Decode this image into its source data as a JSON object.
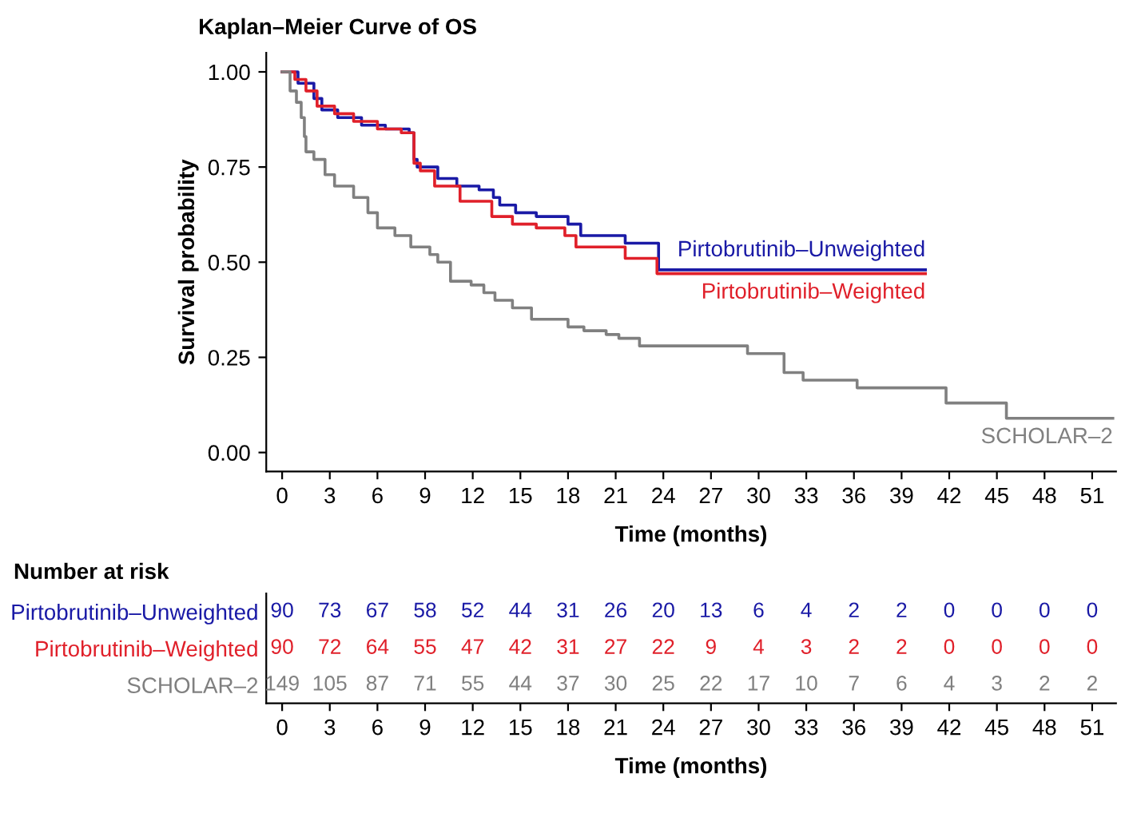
{
  "chart_data": [
    {
      "type": "step",
      "title": "Kaplan–Meier Curve of OS",
      "xlabel": "Time (months)",
      "ylabel": "Survival probability",
      "xlim": [
        -1,
        52.5
      ],
      "ylim": [
        -0.05,
        1.05
      ],
      "xticks": [
        0,
        3,
        6,
        9,
        12,
        15,
        18,
        21,
        24,
        27,
        30,
        33,
        36,
        39,
        42,
        45,
        48,
        51
      ],
      "yticks": [
        {
          "value": 0,
          "label": "0.00"
        },
        {
          "value": 0.25,
          "label": "0.25"
        },
        {
          "value": 0.5,
          "label": "0.50"
        },
        {
          "value": 0.75,
          "label": "0.75"
        },
        {
          "value": 1,
          "label": "1.00"
        }
      ],
      "grid": false,
      "legend": false,
      "series": [
        {
          "name": "Pirtobrutinib–Unweighted",
          "color": "#1a1aa6",
          "x": [
            0,
            1,
            2,
            2.5,
            3.5,
            5,
            6.5,
            8,
            8.3,
            8.5,
            9.8,
            11,
            12.4,
            13.3,
            13.7,
            14.7,
            16,
            18,
            18.8,
            21.6,
            23.7,
            40.5
          ],
          "values": [
            1.0,
            0.97,
            0.93,
            0.9,
            0.88,
            0.86,
            0.85,
            0.84,
            0.77,
            0.75,
            0.72,
            0.7,
            0.69,
            0.67,
            0.65,
            0.63,
            0.62,
            0.6,
            0.57,
            0.55,
            0.48,
            0.48
          ]
        },
        {
          "name": "Pirtobrutinib–Weighted",
          "color": "#e0202a",
          "x": [
            0,
            0.8,
            1.5,
            2.2,
            3.3,
            4.5,
            6,
            7.5,
            8.3,
            8.7,
            9.6,
            11.2,
            13.2,
            14.5,
            16,
            17.8,
            18.5,
            21.6,
            23.6,
            40.5
          ],
          "values": [
            1.0,
            0.98,
            0.95,
            0.91,
            0.89,
            0.87,
            0.85,
            0.84,
            0.76,
            0.74,
            0.7,
            0.66,
            0.62,
            0.6,
            0.59,
            0.57,
            0.54,
            0.51,
            0.47,
            0.47
          ]
        },
        {
          "name": "SCHOLAR–2",
          "color": "#808080",
          "x": [
            0,
            0.5,
            0.9,
            1.2,
            1.4,
            1.5,
            2.0,
            2.7,
            3.3,
            4.5,
            5.4,
            6.0,
            7.1,
            8.1,
            9.3,
            9.8,
            10.6,
            11.9,
            12.7,
            13.4,
            14.5,
            15.7,
            18.0,
            19.0,
            20.4,
            21.2,
            22.5,
            29.3,
            31.6,
            32.8,
            36.2,
            41.8,
            45.6,
            52.3
          ],
          "values": [
            1.0,
            0.95,
            0.92,
            0.88,
            0.83,
            0.79,
            0.77,
            0.73,
            0.7,
            0.67,
            0.63,
            0.59,
            0.57,
            0.54,
            0.52,
            0.5,
            0.45,
            0.44,
            0.42,
            0.4,
            0.38,
            0.35,
            0.33,
            0.32,
            0.31,
            0.3,
            0.28,
            0.26,
            0.21,
            0.19,
            0.17,
            0.13,
            0.09,
            0.09
          ]
        }
      ]
    },
    {
      "type": "heatmap",
      "title": "Number at risk",
      "xlabel": "Time (months)",
      "categories": [
        "0",
        "3",
        "6",
        "9",
        "12",
        "15",
        "18",
        "21",
        "24",
        "27",
        "30",
        "33",
        "36",
        "39",
        "42",
        "45",
        "48",
        "51"
      ],
      "y_categories": [
        "Pirtobrutinib–Unweighted",
        "Pirtobrutinib–Weighted",
        "SCHOLAR–2"
      ],
      "colors": [
        "#1a1aa6",
        "#e0202a",
        "#808080"
      ],
      "data_labels": true,
      "cells": [
        [
          90,
          73,
          67,
          58,
          52,
          44,
          31,
          26,
          20,
          13,
          6,
          4,
          2,
          2,
          0,
          0,
          0,
          0
        ],
        [
          90,
          72,
          64,
          55,
          47,
          42,
          31,
          27,
          22,
          9,
          4,
          3,
          2,
          2,
          0,
          0,
          0,
          0
        ],
        [
          149,
          105,
          87,
          71,
          55,
          44,
          37,
          30,
          25,
          22,
          17,
          10,
          7,
          6,
          4,
          3,
          2,
          2
        ]
      ]
    }
  ]
}
